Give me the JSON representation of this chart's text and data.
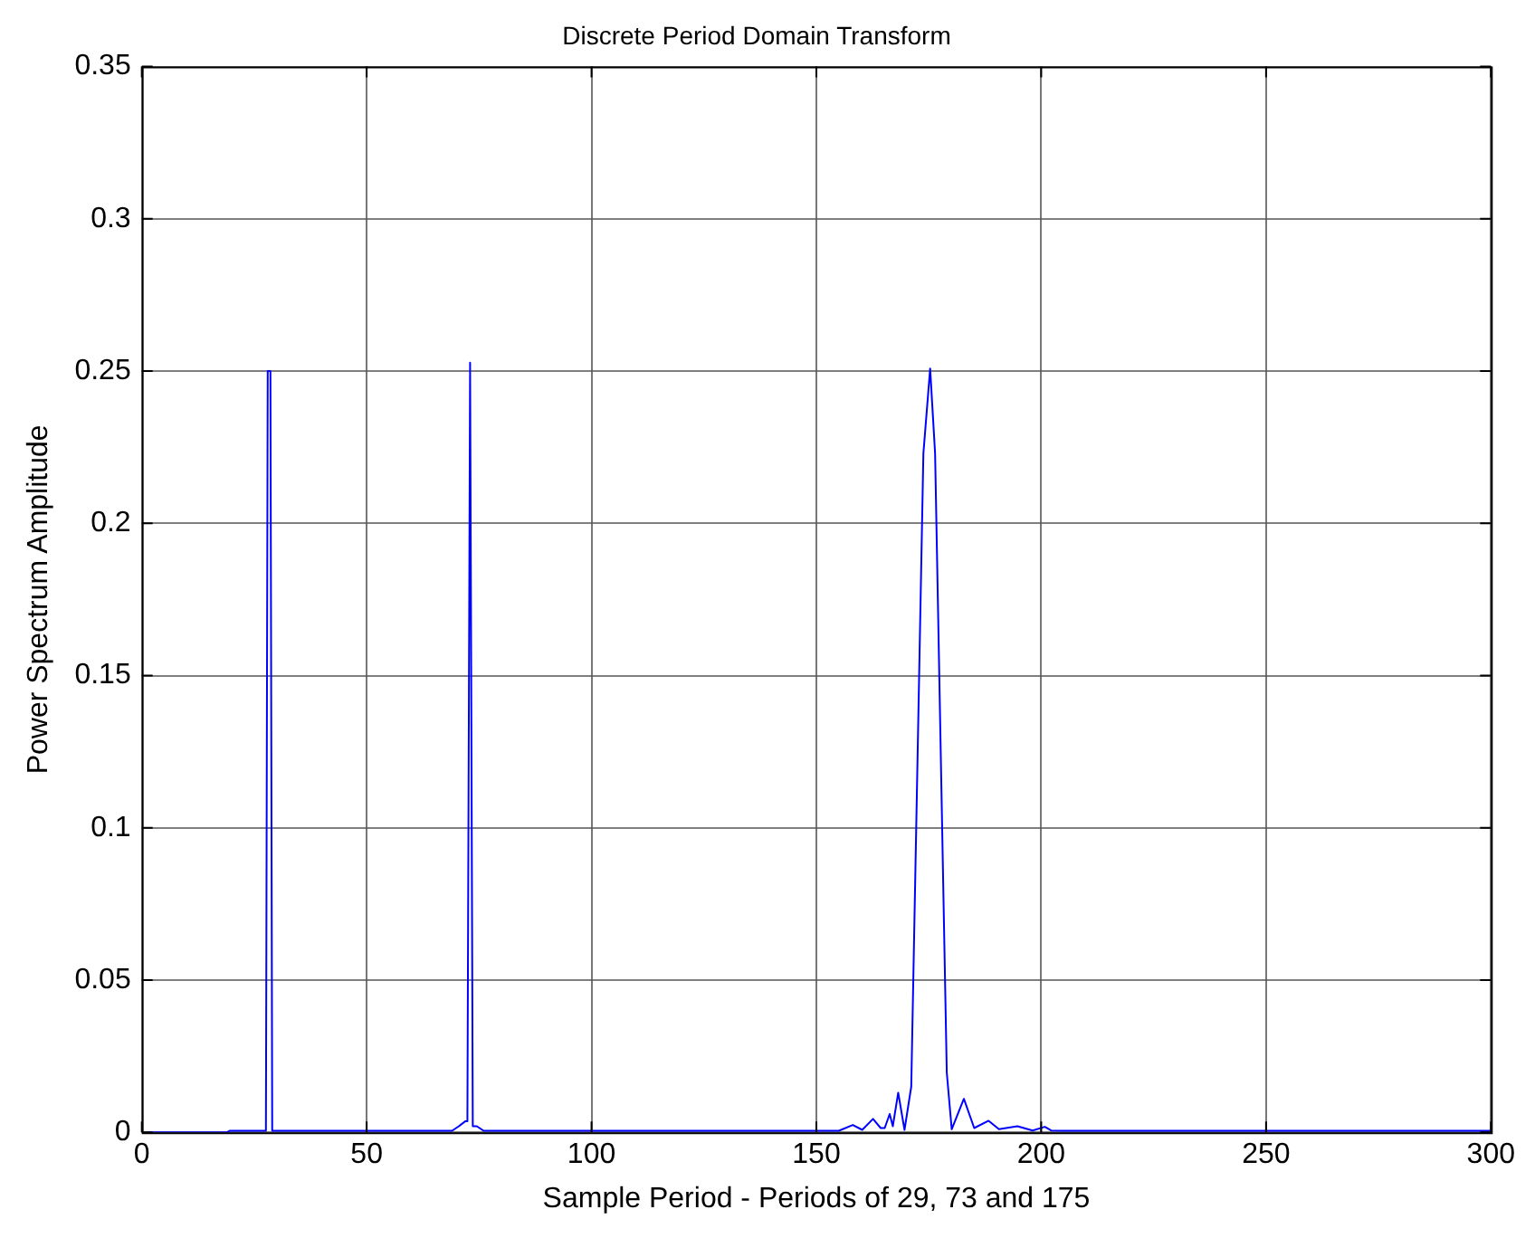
{
  "chart_data": {
    "type": "line",
    "title": "Discrete Period Domain Transform",
    "xlabel": "Sample Period - Periods of 29, 73 and 175",
    "ylabel": "Power Spectrum Amplitude",
    "xlim": [
      0,
      300
    ],
    "xticks": [
      0,
      50,
      100,
      150,
      200,
      250,
      300
    ],
    "ylim": [
      0,
      0.35
    ],
    "yticks": [
      0,
      0.05,
      0.1,
      0.15,
      0.2,
      0.25,
      0.3,
      0.35
    ],
    "grid": true,
    "marker": "none",
    "line_style": "solid",
    "series": [
      {
        "color": "#0000ff",
        "x": [
          1,
          19,
          19.5,
          27.6,
          28,
          28.6,
          29,
          40,
          60,
          69,
          70.5,
          71.9,
          72.4,
          73,
          73.6,
          74.5,
          76,
          100,
          130,
          155,
          158.1,
          160.2,
          162.6,
          164.3,
          165.2,
          166.3,
          167,
          168.2,
          169.6,
          171.1,
          173.8,
          175.3,
          176.4,
          179,
          180.1,
          182.8,
          185.1,
          188.3,
          190.6,
          194.7,
          198.1,
          200.8,
          202.2,
          205,
          250,
          300
        ],
        "values": [
          0,
          0,
          0.0005,
          0.0005,
          0.25,
          0.25,
          0.0005,
          0.0005,
          0.0005,
          0.0005,
          0.002,
          0.0036,
          0.0036,
          0.2528,
          0.002,
          0.002,
          0.0005,
          0.0005,
          0.0005,
          0.0005,
          0.0024,
          0.0008,
          0.0044,
          0.0014,
          0.0014,
          0.006,
          0.002,
          0.013,
          0.0008,
          0.015,
          0.223,
          0.2508,
          0.223,
          0.0196,
          0.001,
          0.011,
          0.0014,
          0.0038,
          0.001,
          0.002,
          0.0006,
          0.0018,
          0.0006,
          0.0005,
          0.0005,
          0.0005
        ]
      }
    ]
  }
}
